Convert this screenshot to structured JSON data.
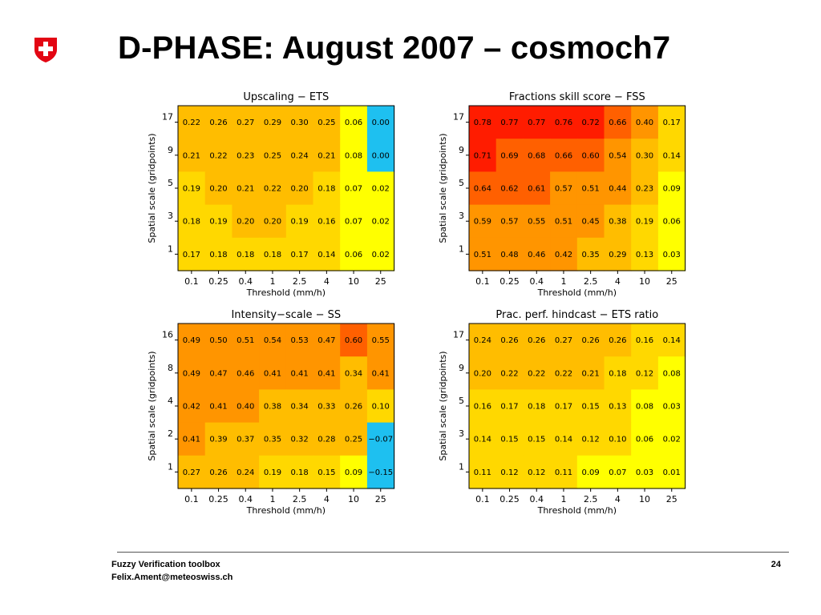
{
  "slide": {
    "title": "D-PHASE: August 2007 – cosmoch7",
    "logo_icon": "swiss-cross-shield-icon",
    "footer": {
      "line1": "Fuzzy Verification toolbox",
      "line2": "Felix.Ament@meteoswiss.ch",
      "page_number": "24"
    }
  },
  "colors": {
    "cyan": "#1ec0f0",
    "yellow": "#ffff00",
    "light_orange": "#ffd800",
    "orange": "#ffbd00",
    "dark_orange": "#ff9500",
    "red_orange": "#ff6000",
    "red": "#ff1c00"
  },
  "chart_data": [
    {
      "type": "heatmap",
      "title": "Upscaling − ETS",
      "xlabel": "Threshold (mm/h)",
      "ylabel": "Spatial scale (gridpoints)",
      "x": [
        "0.1",
        "0.25",
        "0.4",
        "1",
        "2.5",
        "4",
        "10",
        "25"
      ],
      "y": [
        "17",
        "9",
        "5",
        "3",
        "1"
      ],
      "values": [
        [
          "0.22",
          "0.26",
          "0.27",
          "0.29",
          "0.30",
          "0.25",
          "0.06",
          "0.00"
        ],
        [
          "0.21",
          "0.22",
          "0.23",
          "0.25",
          "0.24",
          "0.21",
          "0.08",
          "0.00"
        ],
        [
          "0.19",
          "0.20",
          "0.21",
          "0.22",
          "0.20",
          "0.18",
          "0.07",
          "0.02"
        ],
        [
          "0.18",
          "0.19",
          "0.20",
          "0.20",
          "0.19",
          "0.16",
          "0.07",
          "0.02"
        ],
        [
          "0.17",
          "0.18",
          "0.18",
          "0.18",
          "0.17",
          "0.14",
          "0.06",
          "0.02"
        ]
      ]
    },
    {
      "type": "heatmap",
      "title": "Fractions skill score − FSS",
      "xlabel": "Threshold (mm/h)",
      "ylabel": "Spatial scale (gridpoints)",
      "x": [
        "0.1",
        "0.25",
        "0.4",
        "1",
        "2.5",
        "4",
        "10",
        "25"
      ],
      "y": [
        "17",
        "9",
        "5",
        "3",
        "1"
      ],
      "values": [
        [
          "0.78",
          "0.77",
          "0.77",
          "0.76",
          "0.72",
          "0.66",
          "0.40",
          "0.17"
        ],
        [
          "0.71",
          "0.69",
          "0.68",
          "0.66",
          "0.60",
          "0.54",
          "0.30",
          "0.14"
        ],
        [
          "0.64",
          "0.62",
          "0.61",
          "0.57",
          "0.51",
          "0.44",
          "0.23",
          "0.09"
        ],
        [
          "0.59",
          "0.57",
          "0.55",
          "0.51",
          "0.45",
          "0.38",
          "0.19",
          "0.06"
        ],
        [
          "0.51",
          "0.48",
          "0.46",
          "0.42",
          "0.35",
          "0.29",
          "0.13",
          "0.03"
        ]
      ]
    },
    {
      "type": "heatmap",
      "title": "Intensity−scale − SS",
      "xlabel": "Threshold (mm/h)",
      "ylabel": "Spatial scale (gridpoints)",
      "x": [
        "0.1",
        "0.25",
        "0.4",
        "1",
        "2.5",
        "4",
        "10",
        "25"
      ],
      "y": [
        "16",
        "8",
        "4",
        "2",
        "1"
      ],
      "values": [
        [
          "0.49",
          "0.50",
          "0.51",
          "0.54",
          "0.53",
          "0.47",
          "0.60",
          "0.55"
        ],
        [
          "0.49",
          "0.47",
          "0.46",
          "0.41",
          "0.41",
          "0.41",
          "0.34",
          "0.41"
        ],
        [
          "0.42",
          "0.41",
          "0.40",
          "0.38",
          "0.34",
          "0.33",
          "0.26",
          "0.10"
        ],
        [
          "0.41",
          "0.39",
          "0.37",
          "0.35",
          "0.32",
          "0.28",
          "0.25",
          "−0.07"
        ],
        [
          "0.27",
          "0.26",
          "0.24",
          "0.19",
          "0.18",
          "0.15",
          "0.09",
          "−0.15"
        ]
      ]
    },
    {
      "type": "heatmap",
      "title": "Prac. perf. hindcast − ETS ratio",
      "xlabel": "Threshold (mm/h)",
      "ylabel": "Spatial scale (gridpoints)",
      "x": [
        "0.1",
        "0.25",
        "0.4",
        "1",
        "2.5",
        "4",
        "10",
        "25"
      ],
      "y": [
        "17",
        "9",
        "5",
        "3",
        "1"
      ],
      "values": [
        [
          "0.24",
          "0.26",
          "0.26",
          "0.27",
          "0.26",
          "0.26",
          "0.16",
          "0.14"
        ],
        [
          "0.20",
          "0.22",
          "0.22",
          "0.22",
          "0.21",
          "0.18",
          "0.12",
          "0.08"
        ],
        [
          "0.16",
          "0.17",
          "0.18",
          "0.17",
          "0.15",
          "0.13",
          "0.08",
          "0.03"
        ],
        [
          "0.14",
          "0.15",
          "0.15",
          "0.14",
          "0.12",
          "0.10",
          "0.06",
          "0.02"
        ],
        [
          "0.11",
          "0.12",
          "0.12",
          "0.11",
          "0.09",
          "0.07",
          "0.03",
          "0.01"
        ]
      ]
    }
  ]
}
